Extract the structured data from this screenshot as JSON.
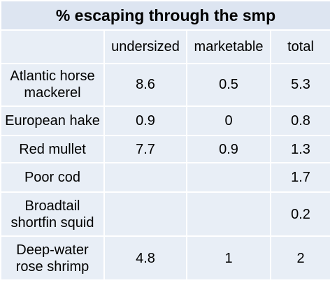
{
  "table": {
    "title": "% escaping through the smp",
    "columns": [
      "",
      "undersized",
      "marketable",
      "total"
    ],
    "rows": [
      {
        "species": "Atlantic horse mackerel",
        "undersized": "8.6",
        "marketable": "0.5",
        "total": "5.3"
      },
      {
        "species": "European hake",
        "undersized": "0.9",
        "marketable": "0",
        "total": "0.8"
      },
      {
        "species": "Red mullet",
        "undersized": "7.7",
        "marketable": "0.9",
        "total": "1.3"
      },
      {
        "species": "Poor cod",
        "undersized": "",
        "marketable": "",
        "total": "1.7"
      },
      {
        "species": "Broadtail shortfin squid",
        "undersized": "",
        "marketable": "",
        "total": "0.2"
      },
      {
        "species": "Deep-water rose shrimp",
        "undersized": "4.8",
        "marketable": "1",
        "total": "2"
      }
    ]
  },
  "colors": {
    "cell_bg": "#e8eef6",
    "title_bg": "#dde5f1",
    "grid": "#ffffff"
  }
}
